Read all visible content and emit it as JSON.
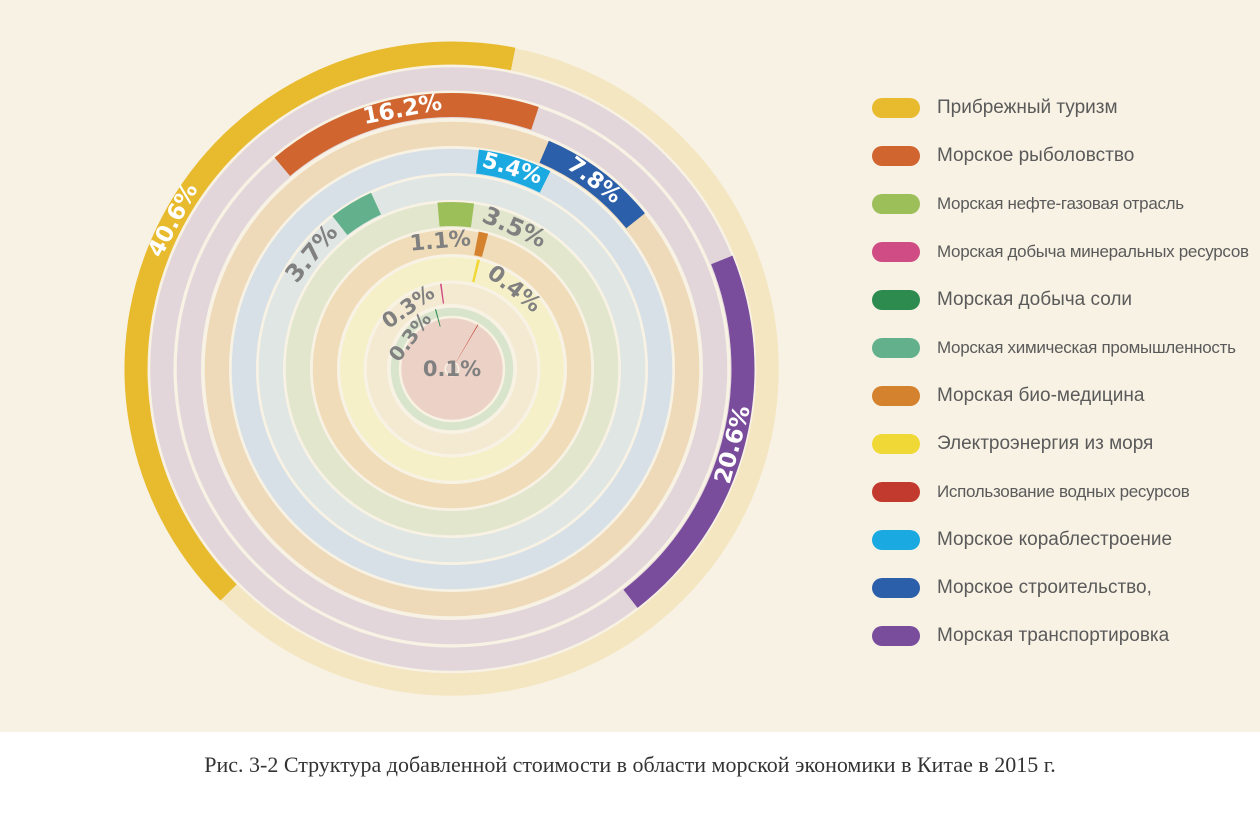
{
  "chart_data": {
    "type": "radial-bar",
    "caption": "Рис. 3-2 Структура добавленной стоимости в области морской экономики в Китае в 2015 г.",
    "series": [
      {
        "name": "Прибрежный туризм",
        "value": 40.6,
        "label": "40.6%",
        "color": "#e8ba2e",
        "track": "#f5e6c2"
      },
      {
        "name": "Морское рыболовство",
        "value": 16.2,
        "label": "16.2%",
        "color": "#d0652f",
        "track": "#e2d6da"
      },
      {
        "name": "Морская нефте-газовая отрасль",
        "value": 3.5,
        "label": "3.5%",
        "color": "#9cbf5a",
        "track": "#e2e6cc"
      },
      {
        "name": "Морская добыча минеральных ресурсов",
        "value": 0.3,
        "label": "0.3%",
        "color": "#cf4d84",
        "track": "#f4ead2"
      },
      {
        "name": "Морская добыча соли",
        "value": 0.3,
        "label": "0.3%",
        "color": "#2e8b4f",
        "track": "#d8e4cc"
      },
      {
        "name": "Морская химическая промышленность",
        "value": 3.7,
        "label": "3.7%",
        "color": "#62b08c",
        "track": "#dfe6e4"
      },
      {
        "name": "Морская био-медицина",
        "value": 1.1,
        "label": "1.1%",
        "color": "#d4822e",
        "track": "#f0dcb8"
      },
      {
        "name": "Электроэнергия из моря",
        "value": 0.4,
        "label": "0.4%",
        "color": "#f0d836",
        "track": "#f6f0c8"
      },
      {
        "name": "Использование водных ресурсов",
        "value": 0.1,
        "label": "0.1%",
        "color": "#c23a2d",
        "track": "#ecd2c6"
      },
      {
        "name": "Морское кораблестроение",
        "value": 5.4,
        "label": "5.4%",
        "color": "#1aa9e0",
        "track": "#d6e0e6"
      },
      {
        "name": "Морское строительство,",
        "value": 7.8,
        "label": "7.8%",
        "color": "#2c5faa",
        "track": "#eed9b9"
      },
      {
        "name": "Морская транспортировка",
        "value": 20.6,
        "label": "20.6%",
        "color": "#7a4c9c",
        "track": "#e2d6da"
      }
    ]
  }
}
